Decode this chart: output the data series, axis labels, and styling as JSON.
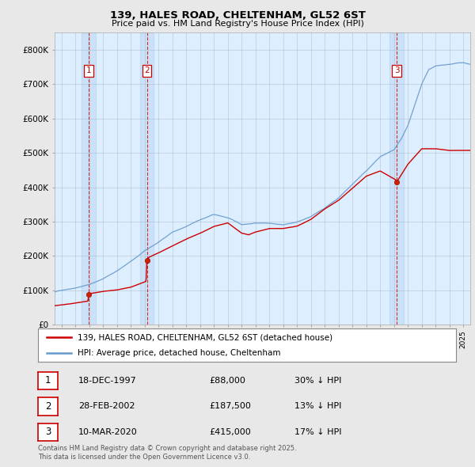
{
  "title_line1": "139, HALES ROAD, CHELTENHAM, GL52 6ST",
  "title_line2": "Price paid vs. HM Land Registry's House Price Index (HPI)",
  "background_color": "#e8e8e8",
  "plot_background": "#ddeeff",
  "hpi_color": "#6699cc",
  "price_color": "#cc0000",
  "purchase_dates": [
    1997.97,
    2002.16,
    2020.19
  ],
  "purchase_prices": [
    88000,
    187500,
    415000
  ],
  "purchase_nums": [
    1,
    2,
    3
  ],
  "legend_entries": [
    "139, HALES ROAD, CHELTENHAM, GL52 6ST (detached house)",
    "HPI: Average price, detached house, Cheltenham"
  ],
  "table_data": [
    [
      "1",
      "18-DEC-1997",
      "£88,000",
      "30% ↓ HPI"
    ],
    [
      "2",
      "28-FEB-2002",
      "£187,500",
      "13% ↓ HPI"
    ],
    [
      "3",
      "10-MAR-2020",
      "£415,000",
      "17% ↓ HPI"
    ]
  ],
  "footer_line1": "Contains HM Land Registry data © Crown copyright and database right 2025.",
  "footer_line2": "This data is licensed under the Open Government Licence v3.0.",
  "ylim": [
    0,
    850000
  ],
  "xlim": [
    1995.5,
    2025.5
  ],
  "yticks": [
    0,
    100000,
    200000,
    300000,
    400000,
    500000,
    600000,
    700000,
    800000
  ],
  "ylabels": [
    "£0",
    "£100K",
    "£200K",
    "£300K",
    "£400K",
    "£500K",
    "£600K",
    "£700K",
    "£800K"
  ]
}
